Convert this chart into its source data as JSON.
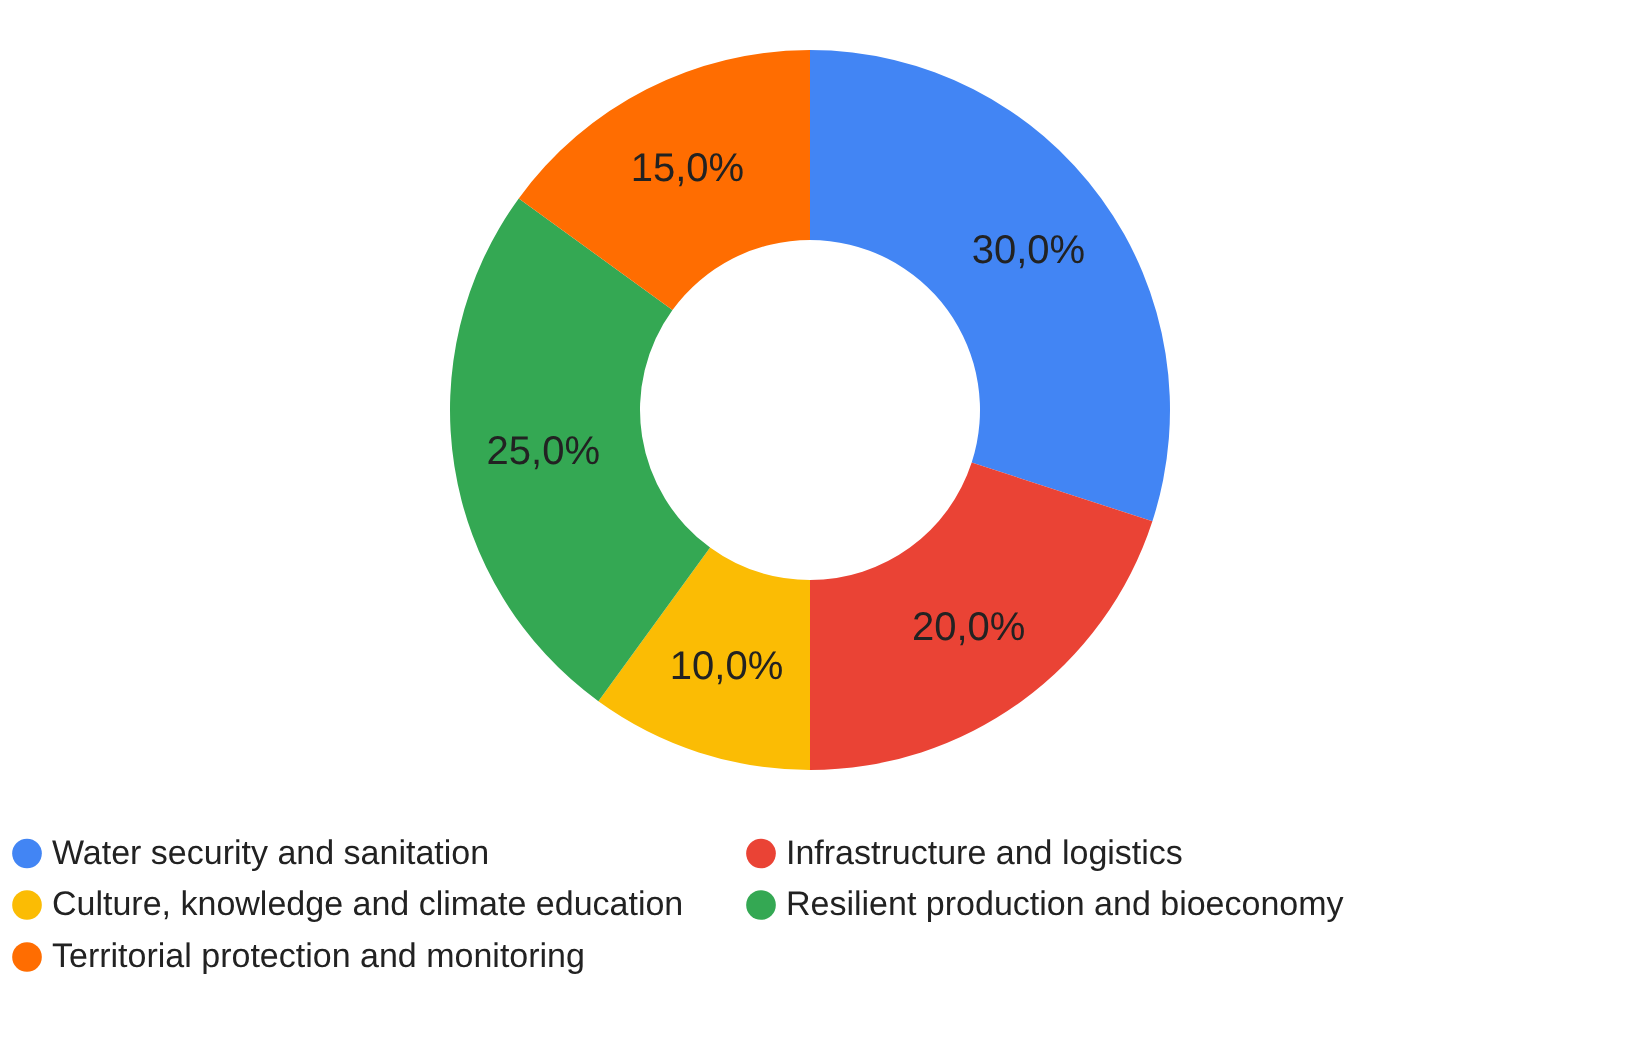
{
  "chart_data": {
    "type": "donut",
    "categories": [
      "Water security and sanitation",
      "Infrastructure and logistics",
      "Culture, knowledge and climate education",
      "Resilient production and bioeconomy",
      "Territorial protection and monitoring"
    ],
    "values": [
      30,
      20,
      10,
      25,
      15
    ],
    "colors": [
      "#4285f4",
      "#ea4335",
      "#fbbc04",
      "#34a853",
      "#ff6d01"
    ],
    "value_labels": [
      "30,0%",
      "20,0%",
      "10,0%",
      "25,0%",
      "15,0%"
    ],
    "legend": "bottom"
  }
}
